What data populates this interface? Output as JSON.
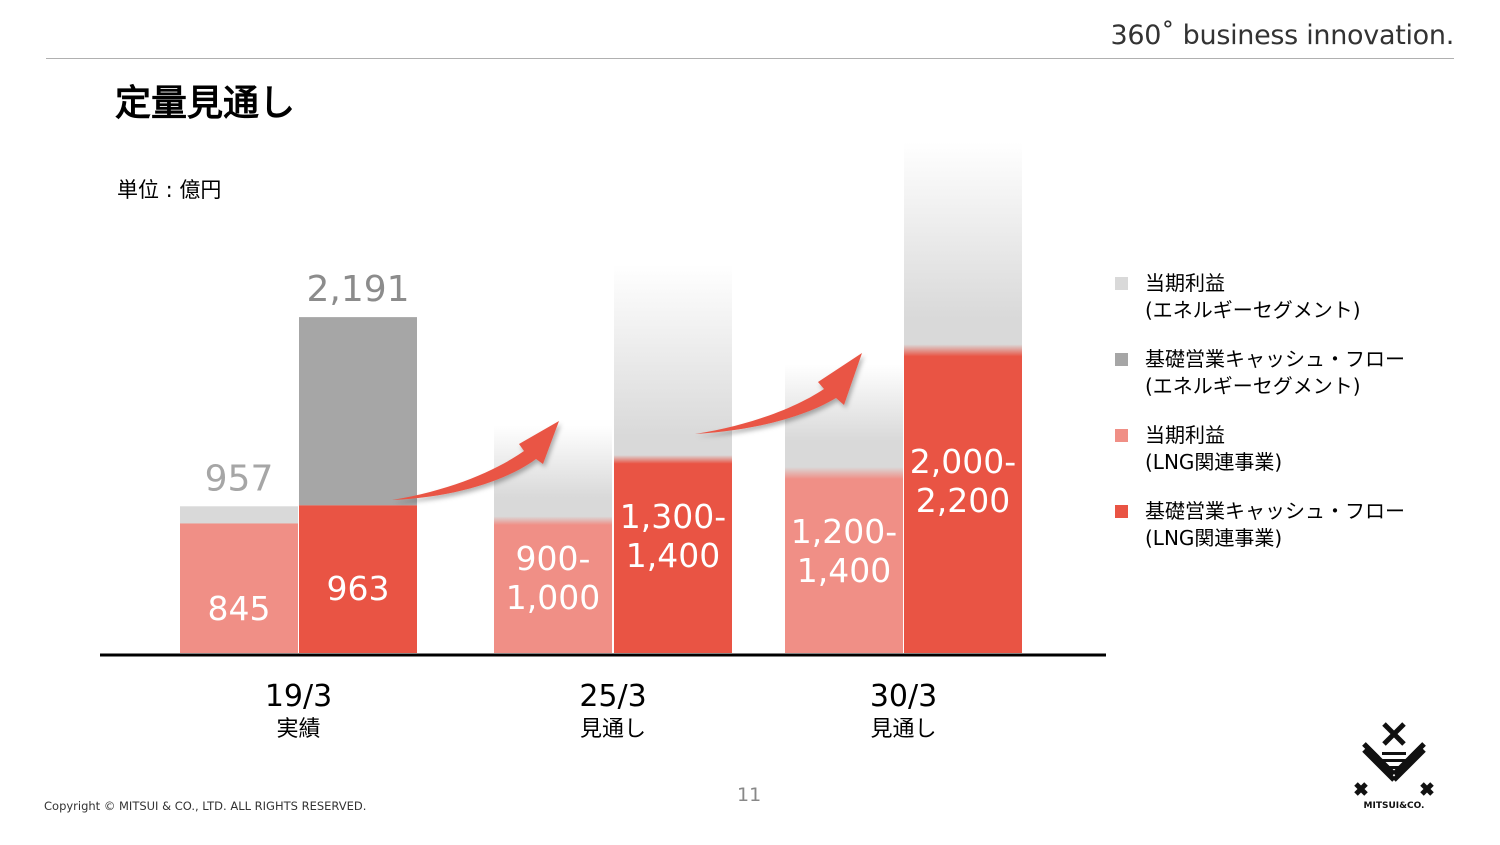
{
  "header": {
    "tagline": "360˚ business innovation.",
    "title": "定量見通し",
    "unit": "単位 : 億円"
  },
  "chart_data": {
    "type": "bar",
    "categories": [
      {
        "period": "19/3",
        "note": "実績"
      },
      {
        "period": "25/3",
        "note": "見通し"
      },
      {
        "period": "30/3",
        "note": "見通し"
      }
    ],
    "series": [
      {
        "name": "当期利益 (エネルギーセグメント)",
        "group": "profit",
        "layer": "total",
        "color": "#d9d9d9",
        "values": [
          957,
          null,
          null
        ],
        "labels": [
          "957",
          "",
          ""
        ]
      },
      {
        "name": "当期利益 (LNG関連事業)",
        "group": "profit",
        "layer": "lng",
        "color": "#f08f86",
        "values": [
          845,
          [
            900,
            1000
          ],
          [
            1200,
            1400
          ]
        ],
        "labels": [
          "845",
          "900-\n1,000",
          "1,200-\n1,400"
        ]
      },
      {
        "name": "基礎営業キャッシュ・フロー (エネルギーセグメント)",
        "group": "cf",
        "layer": "total",
        "color": "#a6a6a6",
        "values": [
          2191,
          null,
          null
        ],
        "labels": [
          "2,191",
          "",
          ""
        ]
      },
      {
        "name": "基礎営業キャッシュ・フロー (LNG関連事業)",
        "group": "cf",
        "layer": "lng",
        "color": "#e95444",
        "values": [
          963,
          [
            1300,
            1400
          ],
          [
            2000,
            2200
          ]
        ],
        "labels": [
          "963",
          "1,300-\n1,400",
          "2,000-\n2,200"
        ]
      }
    ],
    "ylim": [
      0,
      2600
    ],
    "grid": false,
    "legend_position": "right"
  },
  "legend": {
    "items": [
      {
        "line1": "当期利益",
        "line2": "(エネルギーセグメント)",
        "color": "#d9d9d9"
      },
      {
        "line1": "基礎営業キャッシュ・フロー",
        "line2": "(エネルギーセグメント)",
        "color": "#a6a6a6"
      },
      {
        "line1": "当期利益",
        "line2": "(LNG関連事業)",
        "color": "#f08f86"
      },
      {
        "line1": "基礎営業キャッシュ・フロー",
        "line2": "(LNG関連事業)",
        "color": "#e95444"
      }
    ]
  },
  "footer": {
    "copyright": "Copyright © MITSUI & CO., LTD. ALL RIGHTS RESERVED.",
    "page_number": "11",
    "logo_text": "MITSUI&CO."
  }
}
